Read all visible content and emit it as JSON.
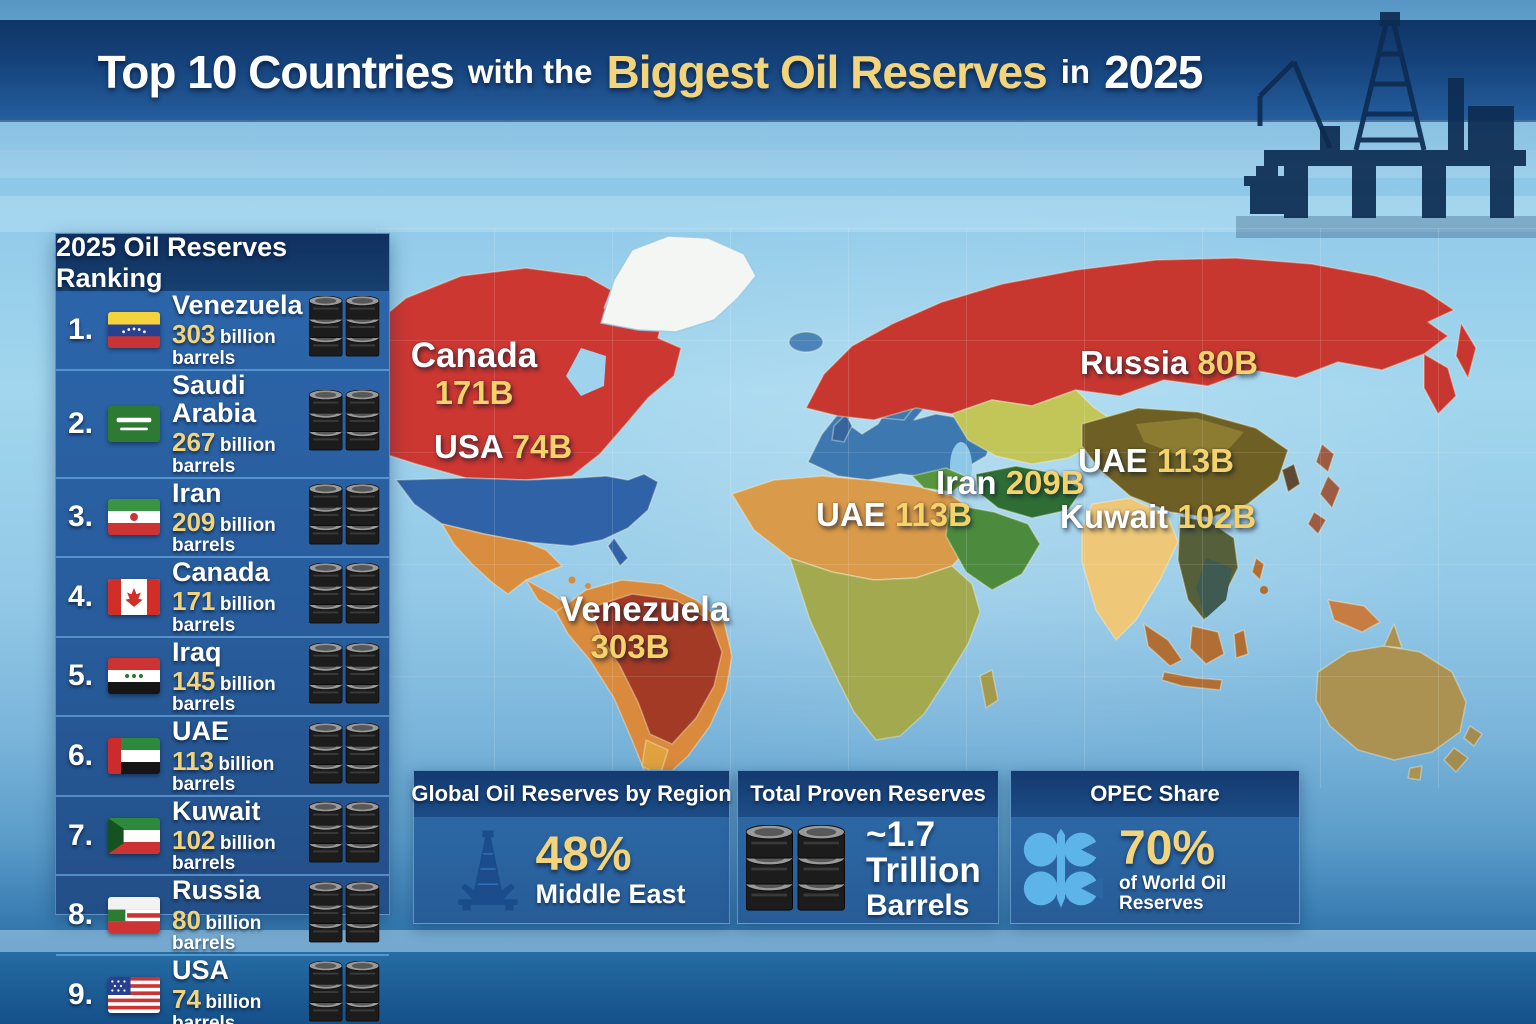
{
  "title": {
    "segments": [
      {
        "text": "Top 10 Countries",
        "size": "big",
        "color": "white"
      },
      {
        "text": "with the",
        "size": "small",
        "color": "white"
      },
      {
        "text": "Biggest Oil Reserves",
        "size": "big",
        "color": "yellow"
      },
      {
        "text": "in",
        "size": "small",
        "color": "white"
      },
      {
        "text": "2025",
        "size": "big",
        "color": "white"
      }
    ]
  },
  "colors": {
    "accent_yellow": "#f2d47c",
    "title_band_navy": "#11396e",
    "panel_blue": "#2b6aa6",
    "canada_red": "#cd3732",
    "usa_blue": "#2f62a7",
    "russia_red": "#c8372f",
    "opec_logo_blue": "#5db4e8"
  },
  "sidebar": {
    "header": "2025 Oil Reserves Ranking",
    "unit": "billion barrels",
    "items": [
      {
        "rank": "1.",
        "country": "Venezuela",
        "value": "303",
        "flag": "venezuela-flag"
      },
      {
        "rank": "2.",
        "country": "Saudi Arabia",
        "value": "267",
        "flag": "saudi-arabia-flag"
      },
      {
        "rank": "3.",
        "country": "Iran",
        "value": "209",
        "flag": "iran-flag"
      },
      {
        "rank": "4.",
        "country": "Canada",
        "value": "171",
        "flag": "canada-flag"
      },
      {
        "rank": "5.",
        "country": "Iraq",
        "value": "145",
        "flag": "iraq-flag"
      },
      {
        "rank": "6.",
        "country": "UAE",
        "value": "113",
        "flag": "uae-flag"
      },
      {
        "rank": "7.",
        "country": "Kuwait",
        "value": "102",
        "flag": "kuwait-flag"
      },
      {
        "rank": "8.",
        "country": "Russia",
        "value": "80",
        "flag": "russia-flag"
      },
      {
        "rank": "9.",
        "country": "USA",
        "value": "74",
        "flag": "usa-flag"
      }
    ]
  },
  "map_labels": [
    {
      "id": "canada",
      "name": "Canada",
      "value": "171B",
      "layout": "two-line"
    },
    {
      "id": "usa",
      "name": "USA",
      "value": "74B",
      "layout": "inline"
    },
    {
      "id": "venezuela",
      "name": "Venezuela",
      "value": "303B",
      "layout": "two-line"
    },
    {
      "id": "russia",
      "name": "Russia",
      "value": "80B",
      "layout": "inline"
    },
    {
      "id": "uae-africa",
      "name": "UAE",
      "value": "113B",
      "layout": "inline"
    },
    {
      "id": "iran",
      "name": "Iran",
      "value": "209B",
      "layout": "inline"
    },
    {
      "id": "uae-asia",
      "name": "UAE",
      "value": "113B",
      "layout": "inline"
    },
    {
      "id": "kuwait",
      "name": "Kuwait",
      "value": "102B",
      "layout": "inline"
    }
  ],
  "panels": [
    {
      "header": "Global Oil Reserves by Region",
      "icon": "oil-derrick-icon",
      "big": "48%",
      "big_color": "yellow",
      "small": "Middle East",
      "small_size": "medium"
    },
    {
      "header": "Total Proven Reserves",
      "icon": "oil-barrels-icon",
      "big": "~1.7 Trillion",
      "big_color": "white",
      "small": "Barrels",
      "small_size": "large"
    },
    {
      "header": "OPEC Share",
      "icon": "opec-logo-icon",
      "big": "70%",
      "big_color": "yellow",
      "small": "of World Oil Reserves",
      "small_size": "small"
    }
  ],
  "decor": {
    "top_right": "offshore-oil-rig-silhouette"
  },
  "chart_data": {
    "type": "table",
    "title": "Top 10 Countries with the Biggest Oil Reserves in 2025",
    "subtitle": "2025 Oil Reserves Ranking",
    "unit": "billion barrels",
    "categories": [
      "Venezuela",
      "Saudi Arabia",
      "Iran",
      "Canada",
      "Iraq",
      "UAE",
      "Kuwait",
      "Russia",
      "USA"
    ],
    "values": [
      303,
      267,
      209,
      171,
      145,
      113,
      102,
      80,
      74
    ],
    "map_values_billion_barrels": {
      "Canada": 171,
      "USA": 74,
      "Venezuela": 303,
      "Russia": 80,
      "UAE": 113,
      "Iran": 209,
      "Kuwait": 102
    },
    "stats": {
      "middle_east_share_of_global_reserves": "48%",
      "total_proven_reserves": "~1.7 Trillion Barrels",
      "opec_share_of_world_oil_reserves": "70%"
    }
  }
}
